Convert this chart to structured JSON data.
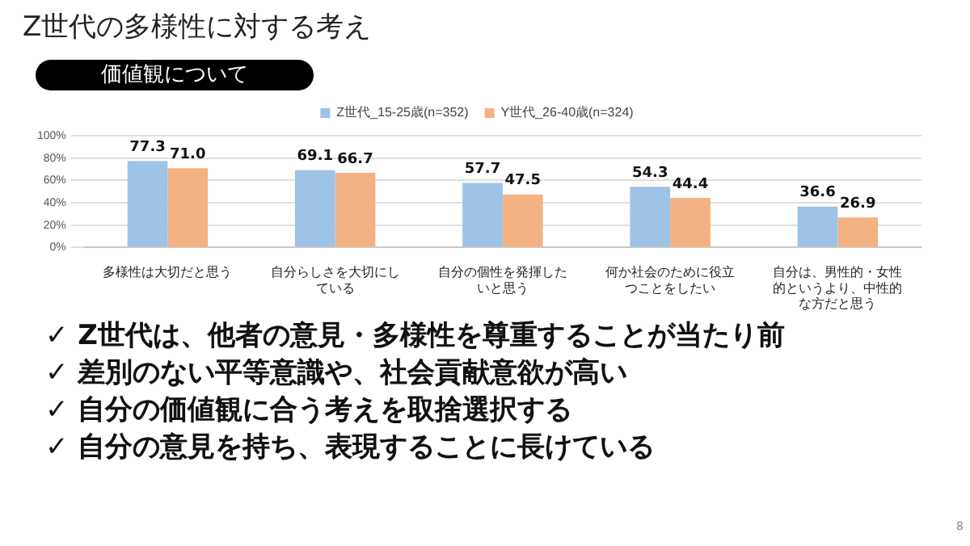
{
  "chart_data": {
    "type": "bar",
    "title": "Z世代の多様性に対する考え",
    "subtitle": "価値観について",
    "categories": [
      "多様性は大切だと思う",
      "自分らしさを大切にしている",
      "自分の個性を発揮したいと思う",
      "何か社会のために役立つことをしたい",
      "自分は、男性的・女性的というより、中性的な方だと思う"
    ],
    "series": [
      {
        "name": "Z世代_15-25歳(n=352)",
        "color": "#9dc3e6",
        "values": [
          77.3,
          69.1,
          57.7,
          54.3,
          36.6
        ],
        "value_labels": [
          "77.3",
          "69.1",
          "57.7",
          "54.3",
          "36.6"
        ]
      },
      {
        "name": "Y世代_26-40歳(n=324)",
        "color": "#f4b183",
        "values": [
          71.0,
          66.7,
          47.5,
          44.4,
          26.9
        ],
        "value_labels": [
          "71.0",
          "66.7",
          "47.5",
          "44.4",
          "26.9"
        ]
      }
    ],
    "ylim": [
      0,
      100
    ],
    "yticks": [
      {
        "value": 0,
        "label": "0%"
      },
      {
        "value": 20,
        "label": "20%"
      },
      {
        "value": 40,
        "label": "40%"
      },
      {
        "value": 60,
        "label": "60%"
      },
      {
        "value": 80,
        "label": "80%"
      },
      {
        "value": 100,
        "label": "100%"
      }
    ],
    "grid": "y",
    "legend": "top",
    "annotations": [
      "✓ Z世代は、他者の意見・多様性を尊重することが当たり前",
      "✓ 差別のない平等意識や、社会貢献意欲が高い",
      "✓ 自分の価値観に合う考えを取捨選択する",
      "✓ 自分の意見を持ち、表現することに長けている",
      "8"
    ]
  }
}
